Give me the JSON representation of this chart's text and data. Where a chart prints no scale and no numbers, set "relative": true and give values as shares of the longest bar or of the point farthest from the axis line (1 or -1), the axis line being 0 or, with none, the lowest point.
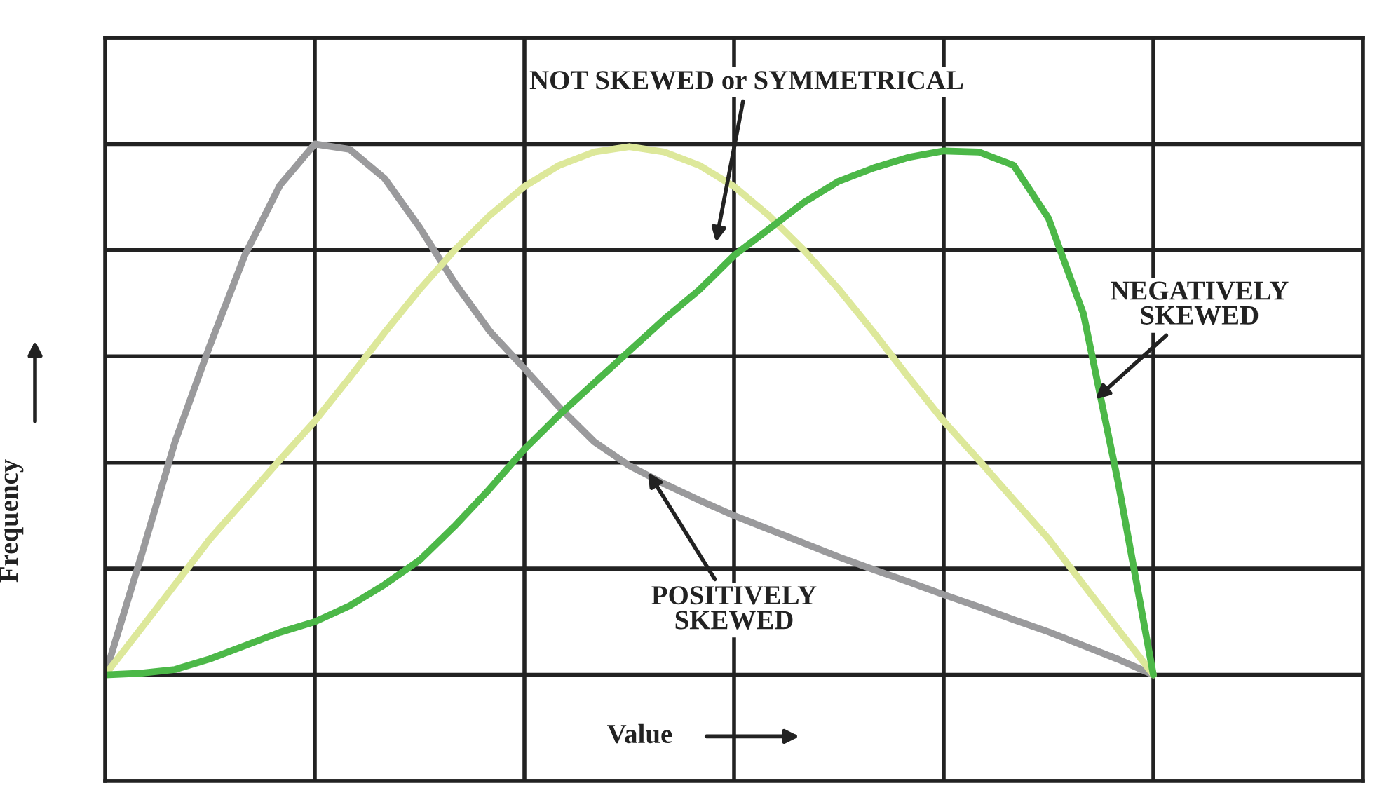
{
  "chart_data": {
    "type": "line",
    "relative": true,
    "grid": true,
    "tick_labels": false,
    "xlabel": "Value",
    "ylabel": "Frequency",
    "categories": [
      null,
      null,
      null,
      null,
      null,
      null,
      null,
      null,
      null,
      null,
      null,
      null,
      null,
      null,
      null,
      null,
      null,
      null,
      null,
      null,
      null,
      null,
      null,
      null,
      null,
      null,
      null,
      null,
      null,
      null,
      null,
      null,
      null,
      null,
      null,
      null,
      null
    ],
    "series": [
      {
        "color": "#9a9a9c",
        "values": [
          0,
          0.217,
          0.439,
          0.621,
          0.791,
          0.922,
          1.0,
          0.99,
          0.935,
          0.843,
          0.739,
          0.648,
          0.577,
          0.504,
          0.439,
          0.394,
          0.36,
          0.329,
          0.3,
          0.274,
          0.248,
          0.222,
          0.198,
          0.175,
          0.151,
          0.128,
          0.104,
          0.081,
          0.055,
          0.029,
          0,
          null,
          null,
          null,
          null,
          null,
          null
        ]
      },
      {
        "color": "#dde89a",
        "values": [
          0,
          0.085,
          0.17,
          0.256,
          0.33,
          0.405,
          0.478,
          0.56,
          0.645,
          0.726,
          0.8,
          0.865,
          0.92,
          0.96,
          0.985,
          0.995,
          0.985,
          0.96,
          0.92,
          0.865,
          0.8,
          0.726,
          0.645,
          0.56,
          0.478,
          0.405,
          0.33,
          0.256,
          0.17,
          0.085,
          0,
          null,
          null,
          null,
          null,
          null,
          null
        ]
      },
      {
        "color": "#4cb848",
        "values": [
          0,
          0.003,
          0.01,
          0.03,
          0.055,
          0.08,
          0.1,
          0.13,
          0.17,
          0.216,
          0.28,
          0.35,
          0.425,
          0.49,
          0.55,
          0.61,
          0.67,
          0.725,
          0.79,
          0.84,
          0.89,
          0.93,
          0.955,
          0.975,
          0.987,
          0.985,
          0.96,
          0.86,
          0.68,
          0.36,
          0,
          null,
          null,
          null,
          null,
          null,
          null
        ]
      }
    ],
    "annotations": [
      "NOT SKEWED or SYMMETRICAL",
      "NEGATIVELY\nSKEWED",
      "POSITIVELY\nSKEWED"
    ]
  }
}
